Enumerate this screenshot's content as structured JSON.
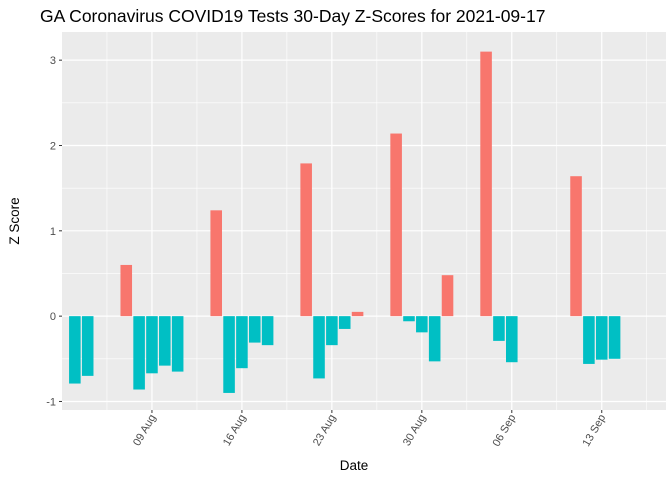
{
  "chart_data": {
    "type": "bar",
    "title": "GA Coronavirus COVID19 Tests 30-Day Z-Scores for 2021-09-17",
    "xlabel": "Date",
    "ylabel": "Z Score",
    "ylim": [
      -1.1,
      3.33
    ],
    "yticks": [
      -1,
      0,
      1,
      2,
      3
    ],
    "x_tick_labels": [
      {
        "label": "09 Aug",
        "date": "2021-08-09"
      },
      {
        "label": "16 Aug",
        "date": "2021-08-16"
      },
      {
        "label": "23 Aug",
        "date": "2021-08-23"
      },
      {
        "label": "30 Aug",
        "date": "2021-08-30"
      },
      {
        "label": "06 Sep",
        "date": "2021-09-06"
      },
      {
        "label": "13 Sep",
        "date": "2021-09-13"
      }
    ],
    "xlim": [
      "2021-08-02",
      "2021-09-18"
    ],
    "grid": true,
    "legend": "none",
    "colors": {
      "positive": "#F8766D",
      "negative": "#00BFC4",
      "panel": "#EBEBEB",
      "grid": "#FFFFFF"
    },
    "points": [
      {
        "x": "2021-08-03",
        "y": -0.79
      },
      {
        "x": "2021-08-04",
        "y": -0.7
      },
      {
        "x": "2021-08-07",
        "y": 0.6
      },
      {
        "x": "2021-08-08",
        "y": -0.86
      },
      {
        "x": "2021-08-09",
        "y": -0.67
      },
      {
        "x": "2021-08-10",
        "y": -0.58
      },
      {
        "x": "2021-08-11",
        "y": -0.65
      },
      {
        "x": "2021-08-14",
        "y": 1.24
      },
      {
        "x": "2021-08-15",
        "y": -0.9
      },
      {
        "x": "2021-08-16",
        "y": -0.61
      },
      {
        "x": "2021-08-17",
        "y": -0.31
      },
      {
        "x": "2021-08-18",
        "y": -0.34
      },
      {
        "x": "2021-08-21",
        "y": 1.79
      },
      {
        "x": "2021-08-22",
        "y": -0.73
      },
      {
        "x": "2021-08-23",
        "y": -0.34
      },
      {
        "x": "2021-08-24",
        "y": -0.15
      },
      {
        "x": "2021-08-25",
        "y": 0.05
      },
      {
        "x": "2021-08-28",
        "y": 2.14
      },
      {
        "x": "2021-08-29",
        "y": -0.06
      },
      {
        "x": "2021-08-30",
        "y": -0.19
      },
      {
        "x": "2021-08-31",
        "y": -0.53
      },
      {
        "x": "2021-09-01",
        "y": 0.48
      },
      {
        "x": "2021-09-04",
        "y": 3.1
      },
      {
        "x": "2021-09-05",
        "y": -0.29
      },
      {
        "x": "2021-09-06",
        "y": -0.54
      },
      {
        "x": "2021-09-11",
        "y": 1.64
      },
      {
        "x": "2021-09-12",
        "y": -0.56
      },
      {
        "x": "2021-09-13",
        "y": -0.51
      },
      {
        "x": "2021-09-14",
        "y": -0.5
      }
    ]
  }
}
